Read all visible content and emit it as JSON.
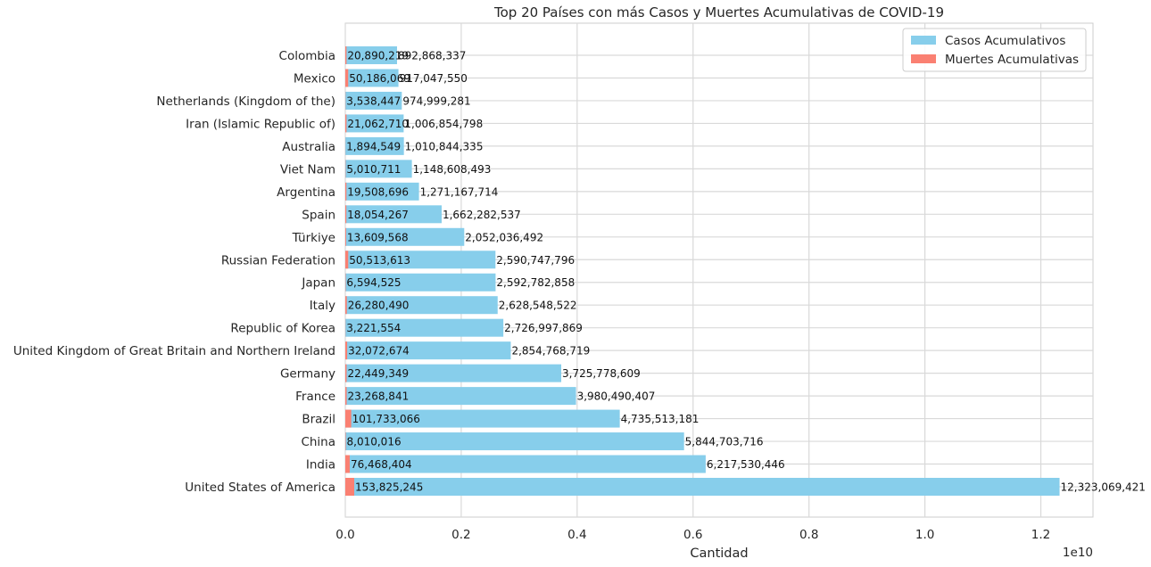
{
  "chart_data": {
    "type": "bar",
    "orientation": "horizontal",
    "title": "Top 20 Países con más Casos y Muertes Acumulativas de COVID-19",
    "xlabel": "Cantidad",
    "ylabel": "",
    "x_offset_text": "1e10",
    "xlim": [
      0,
      12900000000
    ],
    "xticks": [
      0,
      2000000000,
      4000000000,
      6000000000,
      8000000000,
      10000000000,
      12000000000
    ],
    "xtick_labels": [
      "0.0",
      "0.2",
      "0.4",
      "0.6",
      "0.8",
      "1.0",
      "1.2"
    ],
    "grid": true,
    "legend_position": "top-right",
    "categories": [
      "Colombia",
      "Mexico",
      "Netherlands (Kingdom of the)",
      "Iran (Islamic Republic of)",
      "Australia",
      "Viet Nam",
      "Argentina",
      "Spain",
      "Türkiye",
      "Russian Federation",
      "Japan",
      "Italy",
      "Republic of Korea",
      "United Kingdom of Great Britain and Northern Ireland",
      "Germany",
      "France",
      "Brazil",
      "China",
      "India",
      "United States of America"
    ],
    "series": [
      {
        "name": "Casos Acumulativos",
        "color": "#87ceeb",
        "values": [
          892868337,
          917047550,
          974999281,
          1006854798,
          1010844335,
          1148608493,
          1271167714,
          1662282537,
          2052036492,
          2590747796,
          2592782858,
          2628548522,
          2726997869,
          2854768719,
          3725778609,
          3980490407,
          4735513181,
          5844703716,
          6217530446,
          12323069421
        ],
        "labels": [
          "892,868,337",
          "917,047,550",
          "974,999,281",
          "1,006,854,798",
          "1,010,844,335",
          "1,148,608,493",
          "1,271,167,714",
          "1,662,282,537",
          "2,052,036,492",
          "2,590,747,796",
          "2,592,782,858",
          "2,628,548,522",
          "2,726,997,869",
          "2,854,768,719",
          "3,725,778,609",
          "3,980,490,407",
          "4,735,513,181",
          "5,844,703,716",
          "6,217,530,446",
          "12,323,069,421"
        ]
      },
      {
        "name": "Muertes Acumulativas",
        "color": "#fa8072",
        "values": [
          20890219,
          50186069,
          3538447,
          21062710,
          1894549,
          5010711,
          19508696,
          18054267,
          13609568,
          50513613,
          6594525,
          26280490,
          3221554,
          32072674,
          22449349,
          23268841,
          101733066,
          8010016,
          76468404,
          153825245
        ],
        "labels": [
          "20,890,219",
          "50,186,069",
          "3,538,447",
          "21,062,710",
          "1,894,549",
          "5,010,711",
          "19,508,696",
          "18,054,267",
          "13,609,568",
          "50,513,613",
          "6,594,525",
          "26,280,490",
          "3,221,554",
          "32,072,674",
          "22,449,349",
          "23,268,841",
          "101,733,066",
          "8,010,016",
          "76,468,404",
          "153,825,245"
        ]
      }
    ]
  }
}
